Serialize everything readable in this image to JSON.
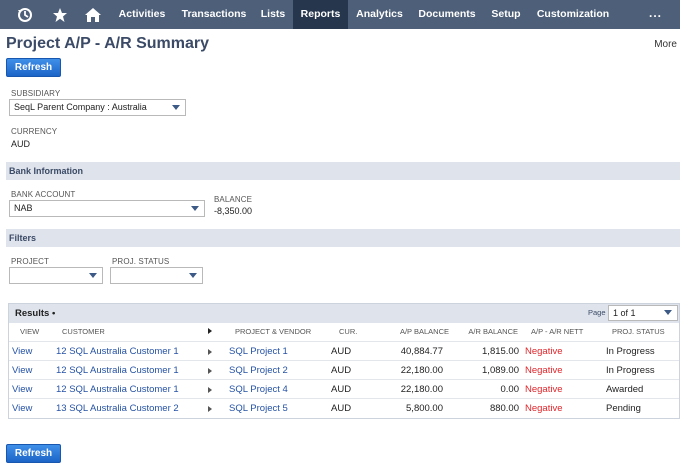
{
  "nav": {
    "icons": [
      "recent-icon",
      "star-icon",
      "home-icon"
    ],
    "items": [
      "Activities",
      "Transactions",
      "Lists",
      "Reports",
      "Analytics",
      "Documents",
      "Setup",
      "Customization"
    ],
    "active": "Reports",
    "more": "..."
  },
  "header": {
    "title": "Project A/P - A/R Summary",
    "more": "More"
  },
  "refresh_label": "Refresh",
  "subsidiary": {
    "label": "SUBSIDIARY",
    "value": "SeqL Parent Company : Australia"
  },
  "currency": {
    "label": "CURRENCY",
    "value": "AUD"
  },
  "bank_info": {
    "section": "Bank Information",
    "account_label": "BANK ACCOUNT",
    "account_value": "NAB",
    "balance_label": "BALANCE",
    "balance_value": "-8,350.00"
  },
  "filters": {
    "section": "Filters",
    "project_label": "PROJECT",
    "project_value": "",
    "status_label": "PROJ. STATUS",
    "status_value": ""
  },
  "results": {
    "title": "Results",
    "dot": "•",
    "page_label": "Page",
    "page_value": "1 of 1",
    "columns": [
      "VIEW",
      "CUSTOMER",
      "PROJECT & VENDOR",
      "CUR.",
      "A/P BALANCE",
      "A/R BALANCE",
      "A/P - A/R NETT",
      "PROJ. STATUS"
    ],
    "rows": [
      {
        "view": "View",
        "customer": "12 SQL Australia Customer 1",
        "project": "SQL Project 1",
        "cur": "AUD",
        "ap": "40,884.77",
        "ar": "1,815.00",
        "nett": "Negative",
        "status": "In Progress"
      },
      {
        "view": "View",
        "customer": "12 SQL Australia Customer 1",
        "project": "SQL Project 2",
        "cur": "AUD",
        "ap": "22,180.00",
        "ar": "1,089.00",
        "nett": "Negative",
        "status": "In Progress"
      },
      {
        "view": "View",
        "customer": "12 SQL Australia Customer 1",
        "project": "SQL Project 4",
        "cur": "AUD",
        "ap": "22,180.00",
        "ar": "0.00",
        "nett": "Negative",
        "status": "Awarded"
      },
      {
        "view": "View",
        "customer": "13 SQL Australia Customer 2",
        "project": "SQL Project 5",
        "cur": "AUD",
        "ap": "5,800.00",
        "ar": "880.00",
        "nett": "Negative",
        "status": "Pending"
      }
    ]
  }
}
